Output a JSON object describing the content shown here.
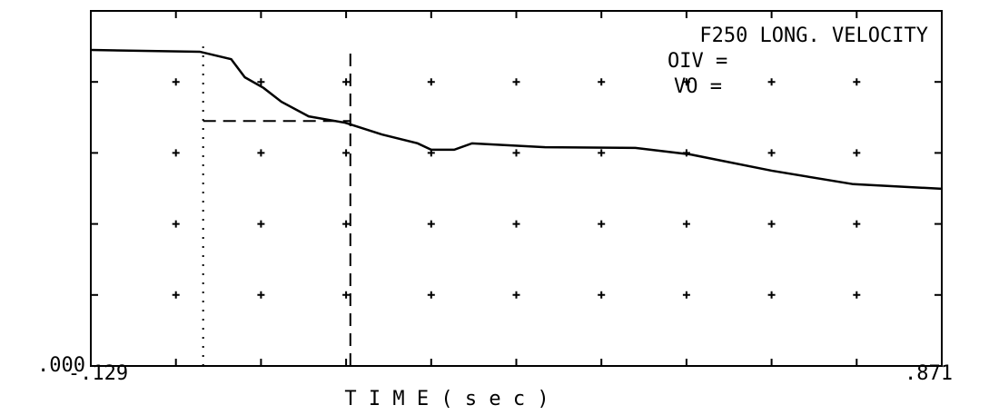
{
  "chart_data": {
    "type": "line",
    "title": "F250 LONG. VELOCITY",
    "annotations": [
      "OIV =",
      "VO ="
    ],
    "xlabel": "T I M E   ( s e c )",
    "xlim": [
      -0.129,
      0.871
    ],
    "xticks": [
      {
        "value": -0.129,
        "label": "-.129"
      },
      {
        "value": 0.871,
        "label": ".871"
      }
    ],
    "xgrid": [
      -0.029,
      0.071,
      0.171,
      0.271,
      0.371,
      0.471,
      0.571,
      0.671,
      0.771
    ],
    "ylim": [
      0,
      1
    ],
    "yticks": [
      {
        "value": 0,
        "label": ".000"
      }
    ],
    "ygrid": [
      0.2,
      0.4,
      0.6,
      0.8
    ],
    "grid": true,
    "x": [
      -0.129,
      -0.001,
      0.036,
      0.052,
      0.074,
      0.095,
      0.127,
      0.17,
      0.213,
      0.255,
      0.271,
      0.298,
      0.319,
      0.405,
      0.511,
      0.575,
      0.671,
      0.767,
      0.871
    ],
    "series": [
      {
        "color": "#000000",
        "values": [
          0.89,
          0.885,
          0.864,
          0.813,
          0.783,
          0.744,
          0.703,
          0.685,
          0.652,
          0.627,
          0.609,
          0.609,
          0.627,
          0.616,
          0.614,
          0.596,
          0.55,
          0.512,
          0.499
        ]
      }
    ],
    "reference_lines": {
      "vertical": [
        0.003,
        0.176
      ],
      "horizontal": {
        "y": 0.69,
        "x": [
          0.003,
          0.176
        ]
      }
    }
  }
}
